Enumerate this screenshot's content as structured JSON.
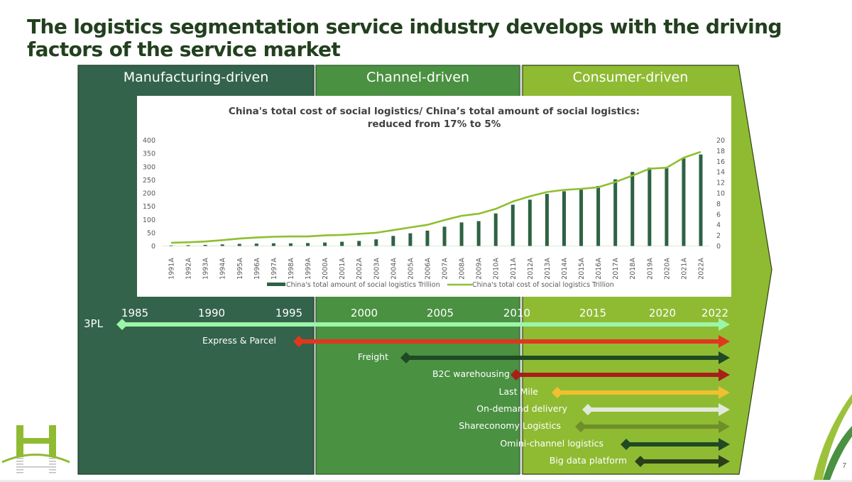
{
  "title": "The logistics segmentation service industry develops with the driving factors of the service market",
  "phases": [
    {
      "label": "Manufacturing-driven",
      "color": "#33634a"
    },
    {
      "label": "Channel-driven",
      "color": "#4a9142"
    },
    {
      "label": "Consumer-driven",
      "color": "#8fbb33"
    }
  ],
  "timeline_years": [
    "1985",
    "1990",
    "1995",
    "2000",
    "2005",
    "2010",
    "2015",
    "2020",
    "2022"
  ],
  "services": [
    {
      "label": "3PL",
      "start_year": 1985,
      "end_year": 2022,
      "color": "#9cf5a8"
    },
    {
      "label": "Express & Parcel",
      "start_year": 1995,
      "end_year": 2022,
      "color": "#e0371e"
    },
    {
      "label": "Freight",
      "start_year": 2003,
      "end_year": 2022,
      "color": "#1f4a24"
    },
    {
      "label": "B2C warehousing",
      "start_year": 2010,
      "end_year": 2022,
      "color": "#a72018"
    },
    {
      "label": "Last Mile",
      "start_year": 2013,
      "end_year": 2022,
      "color": "#f0c030"
    },
    {
      "label": "On-demand delivery",
      "start_year": 2015,
      "end_year": 2022,
      "color": "#e0eadb"
    },
    {
      "label": "Shareconomy Logistics",
      "start_year": 2014.5,
      "end_year": 2022,
      "color": "#6f8f2a"
    },
    {
      "label": "Omini-channel logistics",
      "start_year": 2018,
      "end_year": 2022,
      "color": "#1f4a24"
    },
    {
      "label": "Big data platform",
      "start_year": 2019,
      "end_year": 2022,
      "color": "#2a3f1a"
    }
  ],
  "page_number": "7",
  "logo": {
    "name": "H-bridge-logo",
    "color": "#8fbb33"
  },
  "chart_data": {
    "type": "bar",
    "title": "China's total cost of social logistics/ China’s total amount of social logistics: reduced from 17% to 5%",
    "title_lines": [
      "China's total cost of social logistics/ China’s total amount of social logistics:",
      "reduced from 17% to 5%"
    ],
    "categories": [
      "1991A",
      "1992A",
      "1993A",
      "1994A",
      "1995A",
      "1996A",
      "1997A",
      "1998A",
      "1999A",
      "2000A",
      "2001A",
      "2002A",
      "2003A",
      "2004A",
      "2005A",
      "2006A",
      "2007A",
      "2008A",
      "2009A",
      "2010A",
      "2011A",
      "2012A",
      "2013A",
      "2014A",
      "2015A",
      "2016A",
      "2017A",
      "2018A",
      "2019A",
      "2020A",
      "2021A",
      "2022A"
    ],
    "series": [
      {
        "name": "China's total amount of social logistics Trillion",
        "type": "bar",
        "axis": "left",
        "color": "#2e6244",
        "values": [
          2,
          3,
          4,
          6,
          8,
          9,
          10,
          10,
          11,
          13,
          16,
          19,
          25,
          38,
          48,
          58,
          73,
          89,
          94,
          123,
          156,
          175,
          197,
          207,
          213,
          227,
          252,
          280,
          296,
          294,
          331,
          346
        ]
      },
      {
        "name": "China's total cost of social logistics Trillion",
        "type": "line",
        "axis": "right",
        "color": "#8fbf2f",
        "values": [
          0.6,
          0.7,
          0.85,
          1.1,
          1.4,
          1.6,
          1.75,
          1.8,
          1.8,
          2.0,
          2.1,
          2.3,
          2.5,
          3.0,
          3.5,
          4.0,
          4.9,
          5.7,
          6.1,
          7.0,
          8.4,
          9.4,
          10.2,
          10.6,
          10.8,
          11.1,
          12.1,
          13.3,
          14.6,
          14.8,
          16.7,
          17.8
        ]
      }
    ],
    "left_axis": {
      "ylim": [
        0,
        400
      ],
      "ticks": [
        "0",
        "50",
        "100",
        "150",
        "200",
        "250",
        "300",
        "350",
        "400"
      ]
    },
    "right_axis": {
      "ylim": [
        0,
        20
      ],
      "ticks": [
        "0",
        "2",
        "4",
        "6",
        "8",
        "10",
        "12",
        "14",
        "16",
        "18",
        "20"
      ]
    },
    "xlabel": "",
    "ylabel": "",
    "grid": false,
    "legend": "bottom"
  }
}
